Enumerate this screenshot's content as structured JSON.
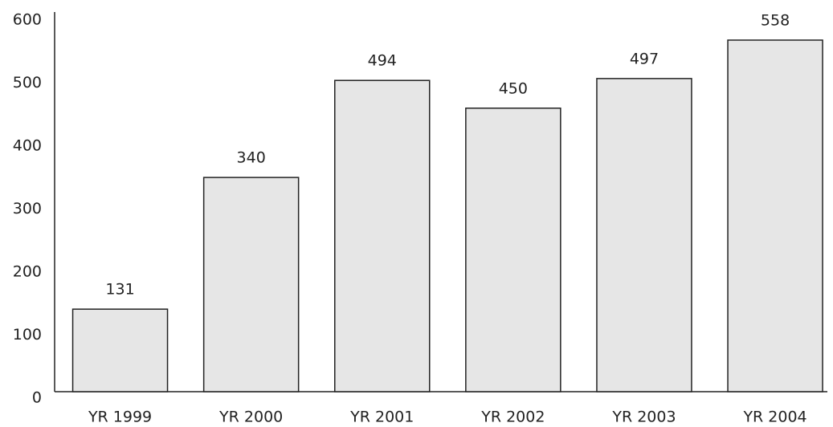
{
  "chart_data": {
    "type": "bar",
    "categories": [
      "YR 1999",
      "YR 2000",
      "YR 2001",
      "YR 2002",
      "YR 2003",
      "YR 2004"
    ],
    "values": [
      131,
      340,
      494,
      450,
      497,
      558
    ],
    "color": "#e6e6e6",
    "ylim": [
      0,
      600
    ],
    "yticks": [
      0,
      100,
      200,
      300,
      400,
      500,
      600
    ],
    "grid": false
  }
}
